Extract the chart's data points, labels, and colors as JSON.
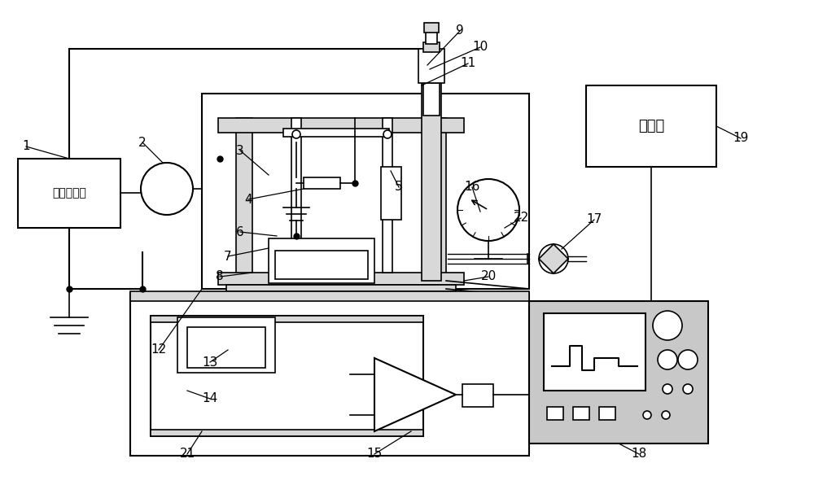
{
  "bg_color": "#ffffff",
  "line_color": "#000000",
  "gray_fill": "#c8c8c8",
  "light_gray": "#d8d8d8",
  "green_fill": "#b0c8b0"
}
